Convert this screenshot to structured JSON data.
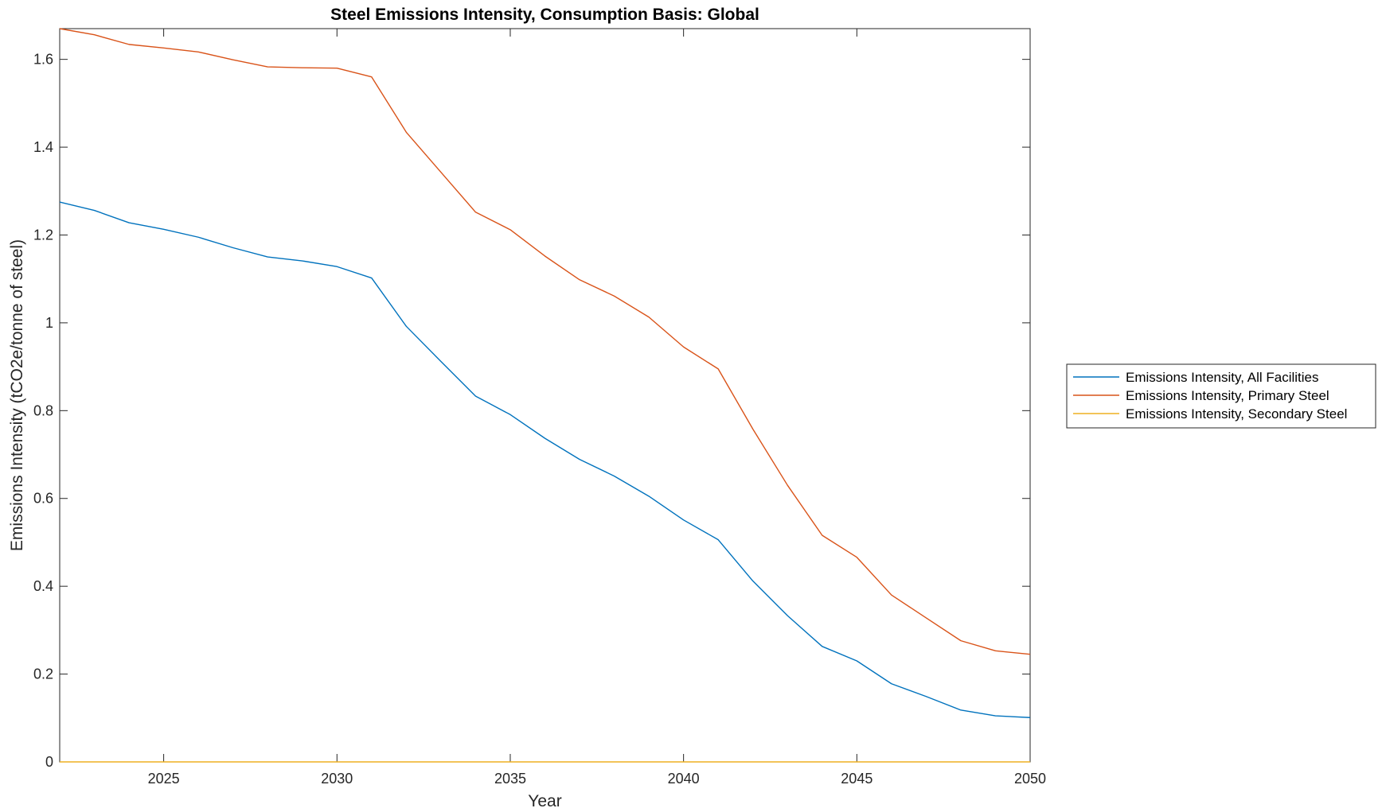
{
  "chart_data": {
    "type": "line",
    "title": "Steel Emissions Intensity, Consumption Basis: Global",
    "xlabel": "Year",
    "ylabel": "Emissions Intensity (tCO2e/tonne of steel)",
    "xlim": [
      2022,
      2050
    ],
    "ylim": [
      0,
      1.67
    ],
    "xticks": [
      2025,
      2030,
      2035,
      2040,
      2045,
      2050
    ],
    "yticks": [
      0,
      0.2,
      0.4,
      0.6,
      0.8,
      1,
      1.2,
      1.4,
      1.6
    ],
    "xtick_labels": [
      "2025",
      "2030",
      "2035",
      "2040",
      "2045",
      "2050"
    ],
    "ytick_labels": [
      "0",
      "0.2",
      "0.4",
      "0.6",
      "0.8",
      "1",
      "1.2",
      "1.4",
      "1.6"
    ],
    "grid": false,
    "legend_position": "outside-right",
    "x": [
      2022,
      2023,
      2024,
      2025,
      2026,
      2027,
      2028,
      2029,
      2030,
      2031,
      2032,
      2033,
      2034,
      2035,
      2036,
      2037,
      2038,
      2039,
      2040,
      2041,
      2042,
      2043,
      2044,
      2045,
      2046,
      2047,
      2048,
      2049,
      2050
    ],
    "series": [
      {
        "name": "Emissions Intensity, All Facilities",
        "color": "#0072BD",
        "values": [
          1.275,
          1.256,
          1.228,
          1.213,
          1.195,
          1.171,
          1.15,
          1.141,
          1.128,
          1.102,
          0.992,
          0.912,
          0.833,
          0.791,
          0.737,
          0.689,
          0.651,
          0.605,
          0.551,
          0.506,
          0.412,
          0.333,
          0.263,
          0.23,
          0.178,
          0.149,
          0.118,
          0.105,
          0.101
        ]
      },
      {
        "name": "Emissions Intensity, Primary Steel",
        "color": "#D95319",
        "values": [
          1.67,
          1.656,
          1.634,
          1.626,
          1.617,
          1.599,
          1.583,
          1.581,
          1.58,
          1.56,
          1.434,
          1.343,
          1.252,
          1.212,
          1.152,
          1.098,
          1.061,
          1.013,
          0.945,
          0.895,
          0.758,
          0.63,
          0.516,
          0.466,
          0.38,
          0.328,
          0.276,
          0.253,
          0.245
        ]
      },
      {
        "name": "Emissions Intensity, Secondary Steel",
        "color": "#EDB120",
        "values": [
          0,
          0,
          0,
          0,
          0,
          0,
          0,
          0,
          0,
          0,
          0,
          0,
          0,
          0,
          0,
          0,
          0,
          0,
          0,
          0,
          0,
          0,
          0,
          0,
          0,
          0,
          0,
          0,
          0
        ]
      }
    ]
  }
}
